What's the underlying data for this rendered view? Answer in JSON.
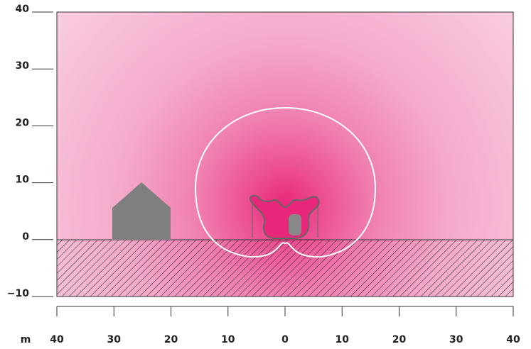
{
  "chart_data": {
    "type": "heatmap",
    "x_label": "m",
    "xlim": [
      -40,
      40
    ],
    "xticks": [
      {
        "value": -40,
        "label": "40"
      },
      {
        "value": -30,
        "label": "30"
      },
      {
        "value": -20,
        "label": "20"
      },
      {
        "value": -10,
        "label": "10"
      },
      0,
      10,
      20,
      30,
      40
    ],
    "ylim": [
      -10,
      40
    ],
    "yticks": [
      {
        "value": -10,
        "label": "−10"
      },
      0,
      10,
      20,
      30,
      40
    ]
  }
}
